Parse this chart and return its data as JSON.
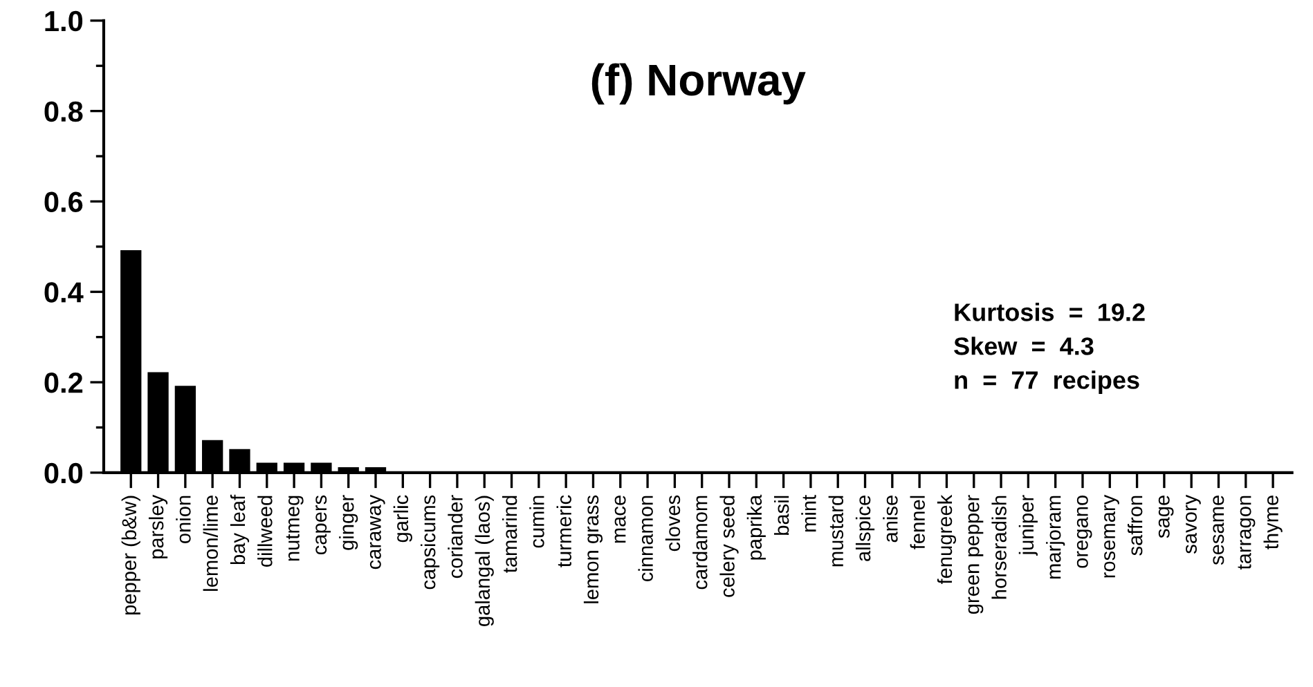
{
  "chart_data": {
    "type": "bar",
    "title": "(f) Norway",
    "categories": [
      "pepper (b&w)",
      "parsley",
      "onion",
      "lemon/lime",
      "bay leaf",
      "dillweed",
      "nutmeg",
      "capers",
      "ginger",
      "caraway",
      "garlic",
      "capsicums",
      "coriander",
      "galangal (laos)",
      "tamarind",
      "cumin",
      "turmeric",
      "lemon grass",
      "mace",
      "cinnamon",
      "cloves",
      "cardamom",
      "celery seed",
      "paprika",
      "basil",
      "mint",
      "mustard",
      "allspice",
      "anise",
      "fennel",
      "fenugreek",
      "green pepper",
      "horseradish",
      "juniper",
      "marjoram",
      "oregano",
      "rosemary",
      "saffron",
      "sage",
      "savory",
      "sesame",
      "tarragon",
      "thyme"
    ],
    "values": [
      0.49,
      0.22,
      0.19,
      0.07,
      0.05,
      0.02,
      0.02,
      0.02,
      0.01,
      0.01,
      0,
      0,
      0,
      0,
      0,
      0,
      0,
      0,
      0,
      0,
      0,
      0,
      0,
      0,
      0,
      0,
      0,
      0,
      0,
      0,
      0,
      0,
      0,
      0,
      0,
      0,
      0,
      0,
      0,
      0,
      0,
      0,
      0
    ],
    "color": "#000000",
    "ylim": [
      0,
      1.0
    ],
    "yticks": [
      {
        "value": 0,
        "label": "0.0"
      },
      {
        "value": 0.2,
        "label": "0.2"
      },
      {
        "value": 0.4,
        "label": "0.4"
      },
      {
        "value": 0.6,
        "label": "0.6"
      },
      {
        "value": 0.8,
        "label": "0.8"
      },
      {
        "value": 1.0,
        "label": "1.0"
      }
    ],
    "grid": false,
    "legend": false,
    "annotations": [
      "Kurtosis  =  19.2",
      "Skew  =  4.3",
      "n  =  77  recipes"
    ]
  }
}
